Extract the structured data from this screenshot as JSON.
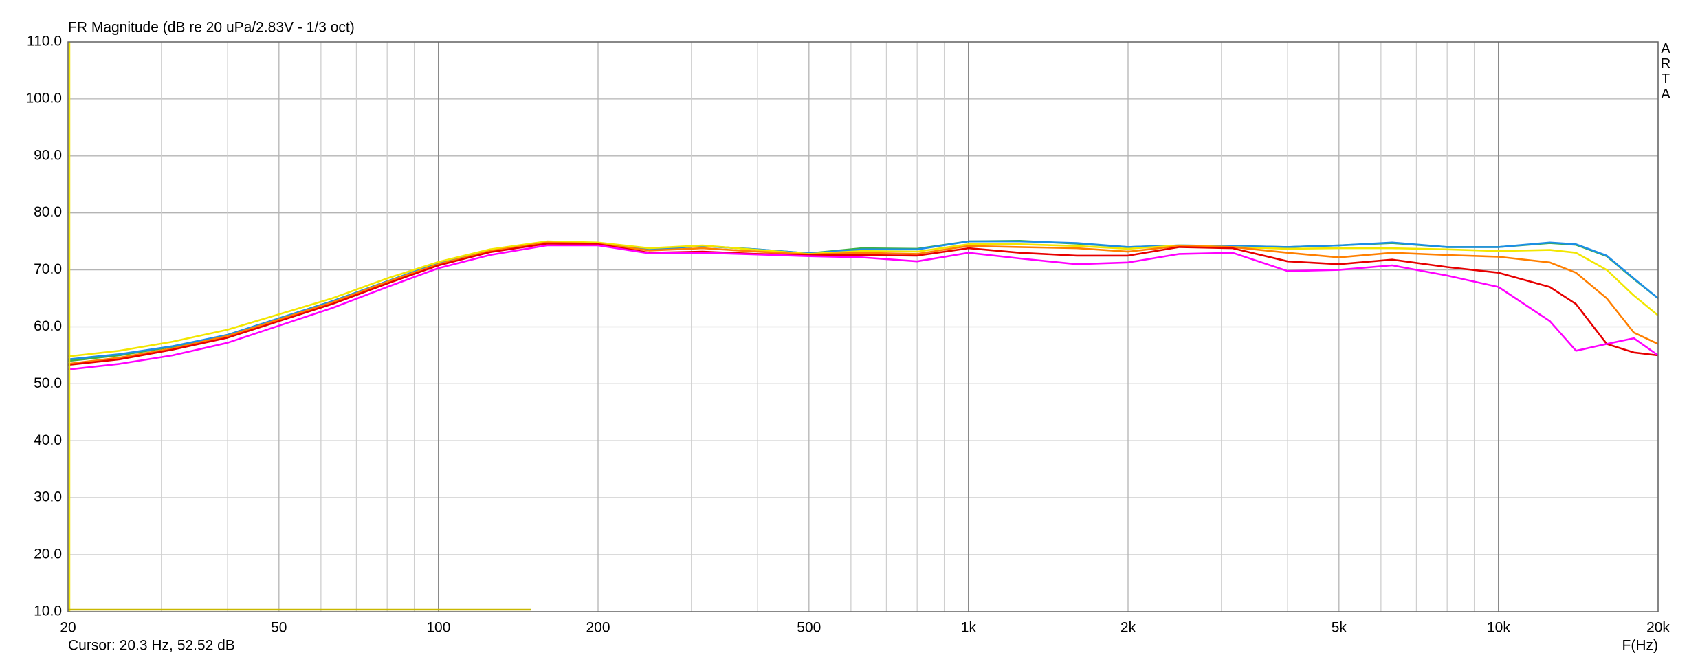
{
  "chart_data": {
    "type": "line",
    "title": "FR Magnitude (dB re 20 uPa/2.83V - 1/3 oct)",
    "x_label": "F(Hz)",
    "side_label": "ARTA",
    "cursor": "Cursor: 20.3 Hz, 52.52 dB",
    "xscale": "log",
    "grid": true,
    "xlim": [
      20,
      20000
    ],
    "ylim": [
      10,
      110
    ],
    "xticks": [
      20,
      50,
      100,
      200,
      500,
      {
        "value": 1000,
        "label": "1k"
      },
      {
        "value": 2000,
        "label": "2k"
      },
      {
        "value": 5000,
        "label": "5k"
      },
      {
        "value": 10000,
        "label": "10k"
      },
      {
        "value": 20000,
        "label": "20k"
      }
    ],
    "xminorticks": [
      30,
      40,
      60,
      70,
      80,
      90,
      300,
      400,
      600,
      700,
      800,
      900,
      3000,
      4000,
      6000,
      7000,
      8000,
      9000
    ],
    "yticks": [
      {
        "value": 10,
        "label": "10.0"
      },
      {
        "value": 20,
        "label": "20.0"
      },
      {
        "value": 30,
        "label": "30.0"
      },
      {
        "value": 40,
        "label": "40.0"
      },
      {
        "value": 50,
        "label": "50.0"
      },
      {
        "value": 60,
        "label": "60.0"
      },
      {
        "value": 70,
        "label": "70.0"
      },
      {
        "value": 80,
        "label": "80.0"
      },
      {
        "value": 90,
        "label": "90.0"
      },
      {
        "value": 100,
        "label": "100.0"
      },
      {
        "value": 110,
        "label": "110.0"
      }
    ],
    "x": [
      20,
      25,
      31.5,
      40,
      50,
      63,
      80,
      100,
      125,
      160,
      200,
      250,
      315,
      400,
      500,
      630,
      800,
      1000,
      1250,
      1600,
      2000,
      2500,
      3150,
      4000,
      5000,
      6300,
      8000,
      10000,
      12500,
      14000,
      16000,
      18000,
      20000
    ],
    "series": [
      {
        "color": "#3cb043",
        "values": [
          54,
          55,
          56.5,
          58.6,
          61.5,
          64.5,
          68,
          71.2,
          73.5,
          74.9,
          74.7,
          73.6,
          74.2,
          73.6,
          72.9,
          73.8,
          73.7,
          75,
          75.1,
          74.6,
          74,
          74.3,
          74.2,
          74,
          74.3,
          74.7,
          74,
          74,
          74.7,
          74.4,
          72.4,
          68.4,
          65
        ]
      },
      {
        "color": "#1c8ee6",
        "values": [
          54.3,
          55.2,
          56.6,
          58.6,
          61.5,
          64.5,
          68,
          71.2,
          73.5,
          74.9,
          74.7,
          73.6,
          74.2,
          73.6,
          72.9,
          73.6,
          73.6,
          75,
          75,
          74.7,
          74,
          74.3,
          74.2,
          74,
          74.3,
          74.8,
          74,
          74,
          74.8,
          74.5,
          72.5,
          68.5,
          65
        ]
      },
      {
        "color": "#f2e600",
        "values": [
          54.8,
          55.8,
          57.4,
          59.5,
          62.2,
          65,
          68.5,
          71.4,
          73.6,
          75,
          74.8,
          73.8,
          74.3,
          73.5,
          72.8,
          73.3,
          73.2,
          74.5,
          74.5,
          74.2,
          73.7,
          74.3,
          74,
          73.7,
          73.8,
          73.8,
          73.6,
          73.3,
          73.5,
          73,
          70,
          65.5,
          62
        ]
      },
      {
        "color": "#ff7f00",
        "values": [
          53.5,
          54.6,
          56.2,
          58.4,
          61.3,
          64.3,
          67.9,
          71,
          73.3,
          74.8,
          74.6,
          73.4,
          73.8,
          73.2,
          72.7,
          73,
          72.8,
          74.2,
          74,
          73.8,
          73.2,
          74.2,
          74,
          73,
          72.2,
          73,
          72.6,
          72.3,
          71.3,
          69.5,
          65,
          59,
          57
        ]
      },
      {
        "color": "#e60000",
        "values": [
          53.3,
          54.3,
          56,
          58.1,
          61,
          64,
          67.6,
          70.8,
          73.1,
          74.6,
          74.5,
          73,
          73.2,
          72.8,
          72.6,
          72.6,
          72.5,
          73.8,
          73,
          72.5,
          72.5,
          74,
          73.8,
          71.5,
          71,
          71.8,
          70.5,
          69.5,
          67,
          64,
          57,
          55.5,
          55
        ]
      },
      {
        "color": "#ff00ff",
        "values": [
          52.5,
          53.5,
          55,
          57.2,
          60.2,
          63.3,
          67,
          70.3,
          72.6,
          74.3,
          74.3,
          72.9,
          73,
          72.7,
          72.4,
          72.2,
          71.5,
          73,
          72,
          71,
          71.3,
          72.8,
          73,
          69.8,
          70,
          70.8,
          69,
          67,
          61,
          55.8,
          57,
          58,
          55
        ]
      }
    ]
  }
}
